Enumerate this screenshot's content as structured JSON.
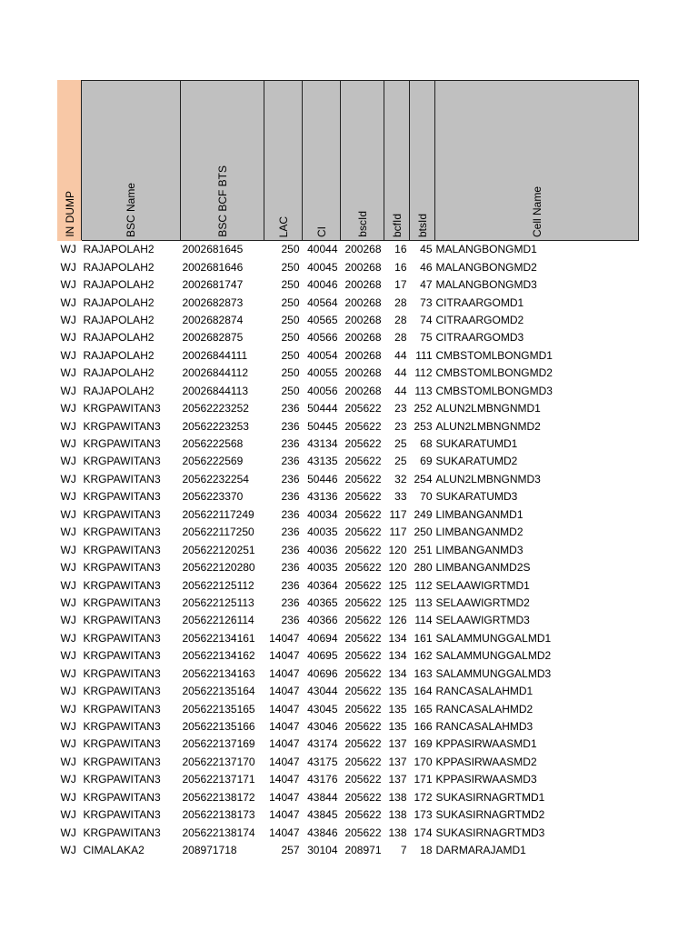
{
  "headers": [
    "IN DUMP",
    "BSC Name",
    "BSC BCF BTS",
    "LAC",
    "CI",
    "bscId",
    "bcfId",
    "btsId",
    "Cell Name"
  ],
  "rows": [
    [
      "WJ",
      "RAJAPOLAH2",
      "2002681645",
      "250",
      "40044",
      "200268",
      "16",
      "45",
      "MALANGBONGMD1"
    ],
    [
      "WJ",
      "RAJAPOLAH2",
      "2002681646",
      "250",
      "40045",
      "200268",
      "16",
      "46",
      "MALANGBONGMD2"
    ],
    [
      "WJ",
      "RAJAPOLAH2",
      "2002681747",
      "250",
      "40046",
      "200268",
      "17",
      "47",
      "MALANGBONGMD3"
    ],
    [
      "WJ",
      "RAJAPOLAH2",
      "2002682873",
      "250",
      "40564",
      "200268",
      "28",
      "73",
      "CITRAARGOMD1"
    ],
    [
      "WJ",
      "RAJAPOLAH2",
      "2002682874",
      "250",
      "40565",
      "200268",
      "28",
      "74",
      "CITRAARGOMD2"
    ],
    [
      "WJ",
      "RAJAPOLAH2",
      "2002682875",
      "250",
      "40566",
      "200268",
      "28",
      "75",
      "CITRAARGOMD3"
    ],
    [
      "WJ",
      "RAJAPOLAH2",
      "20026844111",
      "250",
      "40054",
      "200268",
      "44",
      "111",
      "CMBSTOMLBONGMD1"
    ],
    [
      "WJ",
      "RAJAPOLAH2",
      "20026844112",
      "250",
      "40055",
      "200268",
      "44",
      "112",
      "CMBSTOMLBONGMD2"
    ],
    [
      "WJ",
      "RAJAPOLAH2",
      "20026844113",
      "250",
      "40056",
      "200268",
      "44",
      "113",
      "CMBSTOMLBONGMD3"
    ],
    [
      "WJ",
      "KRGPAWITAN3",
      "20562223252",
      "236",
      "50444",
      "205622",
      "23",
      "252",
      "ALUN2LMBNGNMD1"
    ],
    [
      "WJ",
      "KRGPAWITAN3",
      "20562223253",
      "236",
      "50445",
      "205622",
      "23",
      "253",
      "ALUN2LMBNGNMD2"
    ],
    [
      "WJ",
      "KRGPAWITAN3",
      "2056222568",
      "236",
      "43134",
      "205622",
      "25",
      "68",
      "SUKARATUMD1"
    ],
    [
      "WJ",
      "KRGPAWITAN3",
      "2056222569",
      "236",
      "43135",
      "205622",
      "25",
      "69",
      "SUKARATUMD2"
    ],
    [
      "WJ",
      "KRGPAWITAN3",
      "20562232254",
      "236",
      "50446",
      "205622",
      "32",
      "254",
      "ALUN2LMBNGNMD3"
    ],
    [
      "WJ",
      "KRGPAWITAN3",
      "2056223370",
      "236",
      "43136",
      "205622",
      "33",
      "70",
      "SUKARATUMD3"
    ],
    [
      "WJ",
      "KRGPAWITAN3",
      "205622117249",
      "236",
      "40034",
      "205622",
      "117",
      "249",
      "LIMBANGANMD1"
    ],
    [
      "WJ",
      "KRGPAWITAN3",
      "205622117250",
      "236",
      "40035",
      "205622",
      "117",
      "250",
      "LIMBANGANMD2"
    ],
    [
      "WJ",
      "KRGPAWITAN3",
      "205622120251",
      "236",
      "40036",
      "205622",
      "120",
      "251",
      "LIMBANGANMD3"
    ],
    [
      "WJ",
      "KRGPAWITAN3",
      "205622120280",
      "236",
      "40035",
      "205622",
      "120",
      "280",
      "LIMBANGANMD2S"
    ],
    [
      "WJ",
      "KRGPAWITAN3",
      "205622125112",
      "236",
      "40364",
      "205622",
      "125",
      "112",
      "SELAAWIGRTMD1"
    ],
    [
      "WJ",
      "KRGPAWITAN3",
      "205622125113",
      "236",
      "40365",
      "205622",
      "125",
      "113",
      "SELAAWIGRTMD2"
    ],
    [
      "WJ",
      "KRGPAWITAN3",
      "205622126114",
      "236",
      "40366",
      "205622",
      "126",
      "114",
      "SELAAWIGRTMD3"
    ],
    [
      "WJ",
      "KRGPAWITAN3",
      "205622134161",
      "14047",
      "40694",
      "205622",
      "134",
      "161",
      "SALAMMUNGGALMD1"
    ],
    [
      "WJ",
      "KRGPAWITAN3",
      "205622134162",
      "14047",
      "40695",
      "205622",
      "134",
      "162",
      "SALAMMUNGGALMD2"
    ],
    [
      "WJ",
      "KRGPAWITAN3",
      "205622134163",
      "14047",
      "40696",
      "205622",
      "134",
      "163",
      "SALAMMUNGGALMD3"
    ],
    [
      "WJ",
      "KRGPAWITAN3",
      "205622135164",
      "14047",
      "43044",
      "205622",
      "135",
      "164",
      "RANCASALAHMD1"
    ],
    [
      "WJ",
      "KRGPAWITAN3",
      "205622135165",
      "14047",
      "43045",
      "205622",
      "135",
      "165",
      "RANCASALAHMD2"
    ],
    [
      "WJ",
      "KRGPAWITAN3",
      "205622135166",
      "14047",
      "43046",
      "205622",
      "135",
      "166",
      "RANCASALAHMD3"
    ],
    [
      "WJ",
      "KRGPAWITAN3",
      "205622137169",
      "14047",
      "43174",
      "205622",
      "137",
      "169",
      "KPPASIRWAASMD1"
    ],
    [
      "WJ",
      "KRGPAWITAN3",
      "205622137170",
      "14047",
      "43175",
      "205622",
      "137",
      "170",
      "KPPASIRWAASMD2"
    ],
    [
      "WJ",
      "KRGPAWITAN3",
      "205622137171",
      "14047",
      "43176",
      "205622",
      "137",
      "171",
      "KPPASIRWAASMD3"
    ],
    [
      "WJ",
      "KRGPAWITAN3",
      "205622138172",
      "14047",
      "43844",
      "205622",
      "138",
      "172",
      "SUKASIRNAGRTMD1"
    ],
    [
      "WJ",
      "KRGPAWITAN3",
      "205622138173",
      "14047",
      "43845",
      "205622",
      "138",
      "173",
      "SUKASIRNAGRTMD2"
    ],
    [
      "WJ",
      "KRGPAWITAN3",
      "205622138174",
      "14047",
      "43846",
      "205622",
      "138",
      "174",
      "SUKASIRNAGRTMD3"
    ],
    [
      "WJ",
      "CIMALAKA2",
      "208971718",
      "257",
      "30104",
      "208971",
      "7",
      "18",
      "DARMARAJAMD1"
    ]
  ]
}
